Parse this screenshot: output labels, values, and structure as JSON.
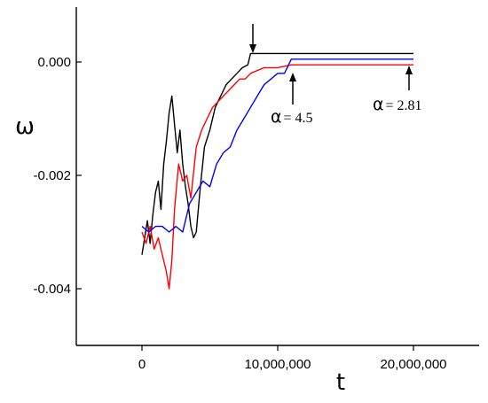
{
  "chart_data": {
    "type": "line",
    "xlabel": "t",
    "ylabel": "ω",
    "xlim": [
      -2500000,
      25000000
    ],
    "ylim": [
      -0.005,
      0.001
    ],
    "xticks": [
      0,
      10000000,
      20000000
    ],
    "xtick_labels": [
      "0",
      "10,000,000",
      "20,000,000"
    ],
    "yticks": [
      0.0,
      -0.002,
      -0.004
    ],
    "ytick_labels": [
      "0.000",
      "-0.002",
      "-0.004"
    ],
    "grid": false,
    "series": [
      {
        "color": "#000000",
        "x": [
          0,
          200000,
          400000,
          600000,
          800000,
          1000000,
          1200000,
          1400000,
          1600000,
          1800000,
          2000000,
          2200000,
          2400000,
          2600000,
          2800000,
          3000000,
          3200000,
          3400000,
          3600000,
          3800000,
          4000000,
          4300000,
          4600000,
          5000000,
          5400000,
          5800000,
          6200000,
          6600000,
          7000000,
          7400000,
          7800000,
          8000000,
          9000000,
          10000000,
          12000000,
          14000000,
          16000000,
          18000000,
          20000000
        ],
        "y": [
          -0.0034,
          -0.0031,
          -0.0028,
          -0.0032,
          -0.0027,
          -0.0023,
          -0.0021,
          -0.0026,
          -0.0018,
          -0.0014,
          -0.0009,
          -0.0006,
          -0.0011,
          -0.0016,
          -0.0012,
          -0.0018,
          -0.0022,
          -0.0025,
          -0.0029,
          -0.0031,
          -0.003,
          -0.0022,
          -0.0015,
          -0.0012,
          -0.0008,
          -0.0006,
          -0.0004,
          -0.0003,
          -0.0002,
          -0.0001,
          -5e-05,
          0.00015,
          0.00015,
          0.00015,
          0.00015,
          0.00015,
          0.00015,
          0.00015,
          0.00015
        ]
      },
      {
        "color": "#ff0000",
        "x": [
          0,
          300000,
          600000,
          900000,
          1200000,
          1500000,
          1800000,
          2000000,
          2200000,
          2400000,
          2700000,
          3000000,
          3300000,
          3600000,
          4000000,
          4400000,
          4800000,
          5200000,
          5600000,
          6000000,
          6400000,
          6800000,
          7200000,
          7600000,
          8000000,
          9000000,
          10000000,
          11000000,
          12000000,
          14000000,
          16000000,
          18000000,
          20000000
        ],
        "y": [
          -0.003,
          -0.0032,
          -0.0029,
          -0.0033,
          -0.0031,
          -0.0034,
          -0.0037,
          -0.004,
          -0.0035,
          -0.0026,
          -0.0018,
          -0.0021,
          -0.002,
          -0.0024,
          -0.0015,
          -0.0012,
          -0.001,
          -0.0008,
          -0.0007,
          -0.0006,
          -0.0005,
          -0.0004,
          -0.0003,
          -0.0003,
          -0.0002,
          -0.0001,
          -0.0001,
          -5e-05,
          -5e-05,
          -5e-05,
          -5e-05,
          -5e-05,
          -5e-05
        ]
      },
      {
        "color": "#0000ff",
        "x": [
          0,
          500000,
          1000000,
          1500000,
          2000000,
          2500000,
          3000000,
          3500000,
          4000000,
          4500000,
          5000000,
          5500000,
          6000000,
          6500000,
          7000000,
          7500000,
          8000000,
          8500000,
          9000000,
          9500000,
          10000000,
          10500000,
          11000000,
          12000000,
          14000000,
          16000000,
          18000000,
          20000000
        ],
        "y": [
          -0.0029,
          -0.003,
          -0.0029,
          -0.0029,
          -0.003,
          -0.0029,
          -0.003,
          -0.0025,
          -0.0023,
          -0.0021,
          -0.0022,
          -0.0018,
          -0.0016,
          -0.0015,
          -0.0012,
          -0.001,
          -0.0008,
          -0.0006,
          -0.0004,
          -0.0003,
          -0.0002,
          -0.0002,
          5e-05,
          5e-05,
          5e-05,
          5e-05,
          5e-05,
          5e-05
        ]
      }
    ],
    "annotations": [
      {
        "symbol": "α",
        "text": "= 4.5"
      },
      {
        "symbol": "α",
        "text": "= 2.81"
      }
    ]
  }
}
